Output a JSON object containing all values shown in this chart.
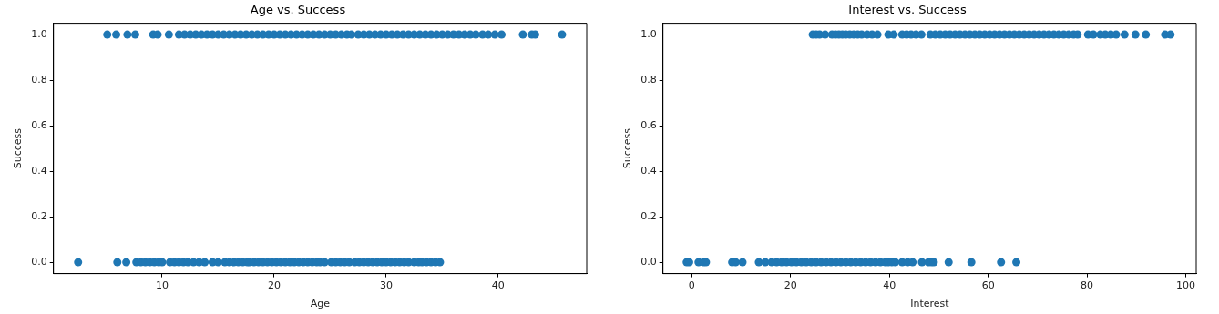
{
  "chart_data": [
    {
      "type": "scatter",
      "title": "Age vs. Success",
      "xlabel": "Age",
      "ylabel": "Success",
      "marker": "circle",
      "xlim": [
        0.3,
        47.9
      ],
      "xticks": [
        10,
        20,
        30,
        40
      ],
      "ylim": [
        -0.05,
        1.05
      ],
      "yticks": [
        {
          "value": 0,
          "label": "0.0"
        },
        {
          "value": 0.2,
          "label": "0.2"
        },
        {
          "value": 0.4,
          "label": "0.4"
        },
        {
          "value": 0.6,
          "label": "0.6"
        },
        {
          "value": 0.8,
          "label": "0.8"
        },
        {
          "value": 1,
          "label": "1.0"
        }
      ],
      "series": [
        {
          "color": "#1f77b4",
          "x": [
            5.1,
            5.9,
            6.9,
            7.6,
            9.2,
            9.6,
            10.6,
            11.5,
            12,
            12.5,
            13,
            13.5,
            14,
            14.5,
            15,
            15.5,
            16,
            16.5,
            17,
            17.5,
            18,
            18.5,
            19,
            19.5,
            20,
            20.5,
            21,
            21.5,
            22,
            22.5,
            23,
            23.5,
            24,
            24.5,
            25,
            25.5,
            26,
            26.5,
            26.9,
            27.5,
            28,
            28.5,
            29,
            29.5,
            30,
            30.5,
            31,
            31.5,
            32,
            32.5,
            33,
            33.5,
            34,
            34.5,
            35,
            35.5,
            36,
            36.5,
            37,
            37.5,
            38,
            38.6,
            39.1,
            39.7,
            40.3,
            42.2,
            43.0,
            43.3,
            45.7
          ],
          "values": [
            1,
            1,
            1,
            1,
            1,
            1,
            1,
            1,
            1,
            1,
            1,
            1,
            1,
            1,
            1,
            1,
            1,
            1,
            1,
            1,
            1,
            1,
            1,
            1,
            1,
            1,
            1,
            1,
            1,
            1,
            1,
            1,
            1,
            1,
            1,
            1,
            1,
            1,
            1,
            1,
            1,
            1,
            1,
            1,
            1,
            1,
            1,
            1,
            1,
            1,
            1,
            1,
            1,
            1,
            1,
            1,
            1,
            1,
            1,
            1,
            1,
            1,
            1,
            1,
            1,
            1,
            1,
            1,
            1
          ]
        },
        {
          "color": "#1f77b4",
          "x": [
            2.5,
            6.0,
            6.8,
            7.7,
            8.1,
            8.5,
            8.9,
            9.3,
            9.7,
            10.0,
            10.7,
            11.1,
            11.5,
            11.9,
            12.3,
            12.8,
            13.3,
            13.8,
            14.5,
            15.0,
            15.6,
            16.0,
            16.4,
            16.8,
            17.2,
            17.6,
            17.8,
            18.2,
            18.6,
            19.0,
            19.4,
            19.8,
            20.2,
            20.6,
            21.0,
            21.4,
            21.8,
            22.2,
            22.6,
            23.0,
            23.4,
            23.8,
            24.1,
            24.5,
            25.1,
            25.5,
            25.9,
            26.3,
            26.7,
            27.2,
            27.6,
            28.0,
            28.4,
            28.8,
            29.2,
            29.6,
            30.0,
            30.4,
            30.8,
            31.2,
            31.6,
            32.0,
            32.5,
            32.9,
            33.2,
            33.6,
            34.0,
            34.4,
            34.8
          ],
          "values": [
            0,
            0,
            0,
            0,
            0,
            0,
            0,
            0,
            0,
            0,
            0,
            0,
            0,
            0,
            0,
            0,
            0,
            0,
            0,
            0,
            0,
            0,
            0,
            0,
            0,
            0,
            0,
            0,
            0,
            0,
            0,
            0,
            0,
            0,
            0,
            0,
            0,
            0,
            0,
            0,
            0,
            0,
            0,
            0,
            0,
            0,
            0,
            0,
            0,
            0,
            0,
            0,
            0,
            0,
            0,
            0,
            0,
            0,
            0,
            0,
            0,
            0,
            0,
            0,
            0,
            0,
            0,
            0,
            0
          ]
        }
      ]
    },
    {
      "type": "scatter",
      "title": "Interest vs. Success",
      "xlabel": "Interest",
      "ylabel": "Success",
      "marker": "circle",
      "xlim": [
        -5.8,
        102.1
      ],
      "xticks": [
        0,
        20,
        40,
        60,
        80,
        100
      ],
      "ylim": [
        -0.05,
        1.05
      ],
      "yticks": [
        {
          "value": 0,
          "label": "0.0"
        },
        {
          "value": 0.2,
          "label": "0.2"
        },
        {
          "value": 0.4,
          "label": "0.4"
        },
        {
          "value": 0.6,
          "label": "0.6"
        },
        {
          "value": 0.8,
          "label": "0.8"
        },
        {
          "value": 1,
          "label": "1.0"
        }
      ],
      "series": [
        {
          "color": "#1f77b4",
          "x": [
            24.5,
            25.2,
            25.9,
            27.0,
            28.4,
            29.1,
            29.8,
            30.5,
            31.2,
            32,
            32.8,
            33.6,
            34.4,
            35.5,
            36.5,
            37.6,
            39.8,
            40.9,
            42.6,
            43.5,
            44.4,
            45.4,
            46.5,
            48.3,
            49.3,
            50.3,
            51.3,
            52.3,
            53.3,
            54.3,
            55.3,
            56.3,
            57.3,
            58.3,
            59.3,
            60.3,
            61.3,
            62.3,
            63.3,
            64.3,
            65.3,
            66.3,
            67.3,
            68.3,
            69.3,
            70.3,
            71.3,
            72.3,
            73.3,
            74.3,
            75.3,
            76.3,
            77.3,
            78.1,
            80.2,
            81.3,
            82.7,
            83.7,
            84.8,
            85.9,
            87.6,
            89.8,
            91.9,
            95.8,
            96.9
          ],
          "values": [
            1,
            1,
            1,
            1,
            1,
            1,
            1,
            1,
            1,
            1,
            1,
            1,
            1,
            1,
            1,
            1,
            1,
            1,
            1,
            1,
            1,
            1,
            1,
            1,
            1,
            1,
            1,
            1,
            1,
            1,
            1,
            1,
            1,
            1,
            1,
            1,
            1,
            1,
            1,
            1,
            1,
            1,
            1,
            1,
            1,
            1,
            1,
            1,
            1,
            1,
            1,
            1,
            1,
            1,
            1,
            1,
            1,
            1,
            1,
            1,
            1,
            1,
            1,
            1,
            1
          ]
        },
        {
          "color": "#1f77b4",
          "x": [
            -1.0,
            -0.5,
            1.4,
            2.4,
            2.9,
            8.2,
            8.9,
            10.3,
            13.6,
            14.9,
            16.2,
            17.2,
            18.2,
            19.2,
            20.2,
            21.2,
            22.2,
            23.2,
            24.2,
            25.2,
            26.2,
            27.2,
            28.2,
            29.2,
            30.2,
            31.2,
            32.2,
            33.2,
            34.2,
            35.2,
            36.2,
            37.2,
            38.2,
            39.2,
            39.8,
            40.5,
            41.2,
            42.6,
            43.7,
            44.7,
            46.6,
            47.9,
            48.5,
            49.0,
            52.0,
            56.6,
            62.6,
            65.7
          ],
          "values": [
            0,
            0,
            0,
            0,
            0,
            0,
            0,
            0,
            0,
            0,
            0,
            0,
            0,
            0,
            0,
            0,
            0,
            0,
            0,
            0,
            0,
            0,
            0,
            0,
            0,
            0,
            0,
            0,
            0,
            0,
            0,
            0,
            0,
            0,
            0,
            0,
            0,
            0,
            0,
            0,
            0,
            0,
            0,
            0,
            0,
            0,
            0,
            0
          ]
        }
      ]
    }
  ]
}
